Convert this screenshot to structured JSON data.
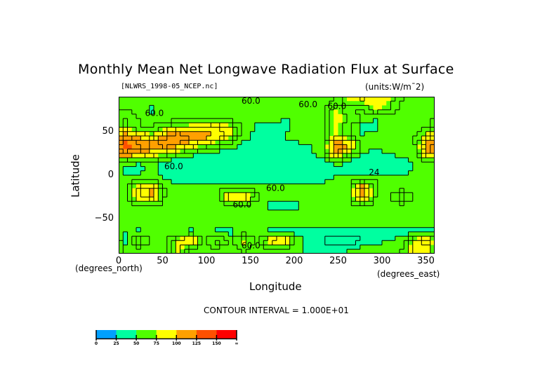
{
  "chart_data": {
    "type": "heatmap",
    "title": "Monthly Mean Net Longwave Radiation Flux at Surface",
    "subtitle_left": "[NLWRS_1998-05_NCEP.nc]",
    "subtitle_right": "(units:W/m¯2)",
    "xlabel": "Longitude",
    "ylabel": "Latitude",
    "x_units_label": "(degrees_east)",
    "y_units_label": "(degrees_north)",
    "xlim": [
      0,
      360
    ],
    "ylim": [
      -90,
      90
    ],
    "x_ticks": [
      0,
      50,
      100,
      150,
      200,
      250,
      300,
      350
    ],
    "x_tick_labels": [
      "0",
      "50",
      "100",
      "150",
      "200",
      "250",
      "300",
      "350"
    ],
    "y_ticks": [
      50,
      0,
      -50
    ],
    "y_tick_labels": [
      "50",
      "0",
      "−50"
    ],
    "contour_interval_text": "CONTOUR INTERVAL = 1.000E+01",
    "contour_labels": [
      {
        "text": "60.0",
        "lon": 140,
        "lat": 82
      },
      {
        "text": "60.0",
        "lon": 205,
        "lat": 78
      },
      {
        "text": "60.0",
        "lon": 238,
        "lat": 76
      },
      {
        "text": "60.0",
        "lon": 30,
        "lat": 68
      },
      {
        "text": "60.0",
        "lon": 52,
        "lat": 7
      },
      {
        "text": "60.0",
        "lon": 168,
        "lat": -18
      },
      {
        "text": "60.0",
        "lon": 130,
        "lat": -37
      },
      {
        "text": "24",
        "lon": 285,
        "lat": 0
      },
      {
        "text": "60.0",
        "lon": 140,
        "lat": -84
      }
    ],
    "levels": [
      0,
      25,
      50,
      75,
      100,
      125,
      150
    ],
    "level_labels": [
      "0",
      "25",
      "50",
      "75",
      "100",
      "125",
      "150",
      "∞"
    ],
    "level_colors": [
      "#00a0ff",
      "#00ffa0",
      "#50ff00",
      "#ffff00",
      "#ffa000",
      "#ff5000",
      "#ff0000"
    ],
    "grid_lon_step": 15,
    "grid_lat_step": 10,
    "grid_lats": [
      85,
      75,
      65,
      55,
      45,
      35,
      25,
      15,
      5,
      -5,
      -15,
      -25,
      -35,
      -45,
      -55,
      -65,
      -75,
      -85
    ],
    "grid_lons": [
      7.5,
      22.5,
      37.5,
      52.5,
      67.5,
      82.5,
      97.5,
      112.5,
      127.5,
      142.5,
      157.5,
      172.5,
      187.5,
      202.5,
      217.5,
      232.5,
      247.5,
      262.5,
      277.5,
      292.5,
      307.5,
      322.5,
      337.5,
      352.5
    ],
    "values": [
      [
        55,
        55,
        58,
        55,
        55,
        55,
        55,
        55,
        55,
        55,
        55,
        55,
        55,
        55,
        55,
        55,
        60,
        78,
        80,
        78,
        76,
        60,
        55,
        55
      ],
      [
        60,
        58,
        45,
        55,
        55,
        55,
        55,
        55,
        55,
        55,
        55,
        55,
        55,
        55,
        55,
        60,
        78,
        62,
        55,
        78,
        70,
        55,
        55,
        55
      ],
      [
        70,
        60,
        55,
        55,
        55,
        55,
        55,
        55,
        55,
        55,
        55,
        55,
        50,
        50,
        55,
        55,
        78,
        72,
        60,
        50,
        55,
        55,
        55,
        55
      ],
      [
        76,
        60,
        58,
        70,
        80,
        82,
        85,
        90,
        80,
        60,
        48,
        45,
        45,
        55,
        55,
        55,
        80,
        60,
        45,
        48,
        55,
        55,
        55,
        60
      ],
      [
        110,
        95,
        80,
        105,
        120,
        115,
        110,
        100,
        80,
        55,
        45,
        48,
        50,
        55,
        55,
        60,
        78,
        60,
        50,
        55,
        55,
        55,
        60,
        80
      ],
      [
        130,
        125,
        115,
        120,
        110,
        90,
        78,
        65,
        55,
        45,
        45,
        45,
        45,
        48,
        50,
        55,
        120,
        105,
        55,
        55,
        55,
        55,
        60,
        110
      ],
      [
        120,
        110,
        90,
        80,
        65,
        55,
        48,
        45,
        45,
        45,
        45,
        45,
        45,
        45,
        48,
        55,
        110,
        70,
        50,
        45,
        50,
        55,
        55,
        105
      ],
      [
        55,
        50,
        55,
        45,
        40,
        40,
        40,
        40,
        40,
        40,
        45,
        45,
        45,
        45,
        45,
        45,
        55,
        45,
        40,
        40,
        40,
        45,
        50,
        55
      ],
      [
        45,
        45,
        55,
        45,
        40,
        40,
        40,
        40,
        40,
        40,
        40,
        40,
        40,
        40,
        40,
        40,
        45,
        45,
        40,
        40,
        40,
        45,
        50,
        55
      ],
      [
        55,
        55,
        55,
        50,
        45,
        45,
        45,
        45,
        40,
        40,
        40,
        40,
        40,
        40,
        45,
        45,
        55,
        55,
        55,
        60,
        55,
        55,
        55,
        55
      ],
      [
        55,
        85,
        100,
        60,
        55,
        55,
        55,
        55,
        58,
        55,
        55,
        55,
        55,
        55,
        55,
        55,
        55,
        58,
        120,
        60,
        55,
        55,
        55,
        55
      ],
      [
        55,
        90,
        105,
        60,
        55,
        55,
        55,
        60,
        100,
        95,
        65,
        55,
        55,
        55,
        55,
        55,
        55,
        58,
        110,
        60,
        55,
        80,
        58,
        55
      ],
      [
        55,
        58,
        58,
        55,
        55,
        55,
        55,
        55,
        55,
        55,
        50,
        48,
        45,
        48,
        55,
        55,
        55,
        55,
        58,
        55,
        55,
        55,
        55,
        55
      ],
      [
        55,
        55,
        50,
        55,
        55,
        55,
        55,
        55,
        55,
        55,
        55,
        55,
        55,
        55,
        55,
        55,
        55,
        55,
        55,
        55,
        55,
        55,
        55,
        55
      ],
      [
        55,
        55,
        55,
        55,
        55,
        55,
        55,
        55,
        55,
        55,
        55,
        55,
        55,
        55,
        55,
        55,
        55,
        55,
        55,
        55,
        55,
        55,
        55,
        55
      ],
      [
        50,
        48,
        55,
        55,
        50,
        48,
        55,
        45,
        48,
        55,
        55,
        45,
        45,
        45,
        40,
        40,
        45,
        45,
        45,
        45,
        45,
        45,
        45,
        45
      ],
      [
        45,
        80,
        55,
        60,
        80,
        100,
        60,
        75,
        55,
        80,
        60,
        85,
        100,
        60,
        45,
        40,
        35,
        30,
        40,
        45,
        50,
        55,
        80,
        100
      ],
      [
        55,
        55,
        55,
        55,
        80,
        55,
        55,
        58,
        55,
        60,
        55,
        55,
        55,
        55,
        45,
        40,
        45,
        50,
        55,
        55,
        55,
        60,
        85,
        80
      ]
    ]
  }
}
